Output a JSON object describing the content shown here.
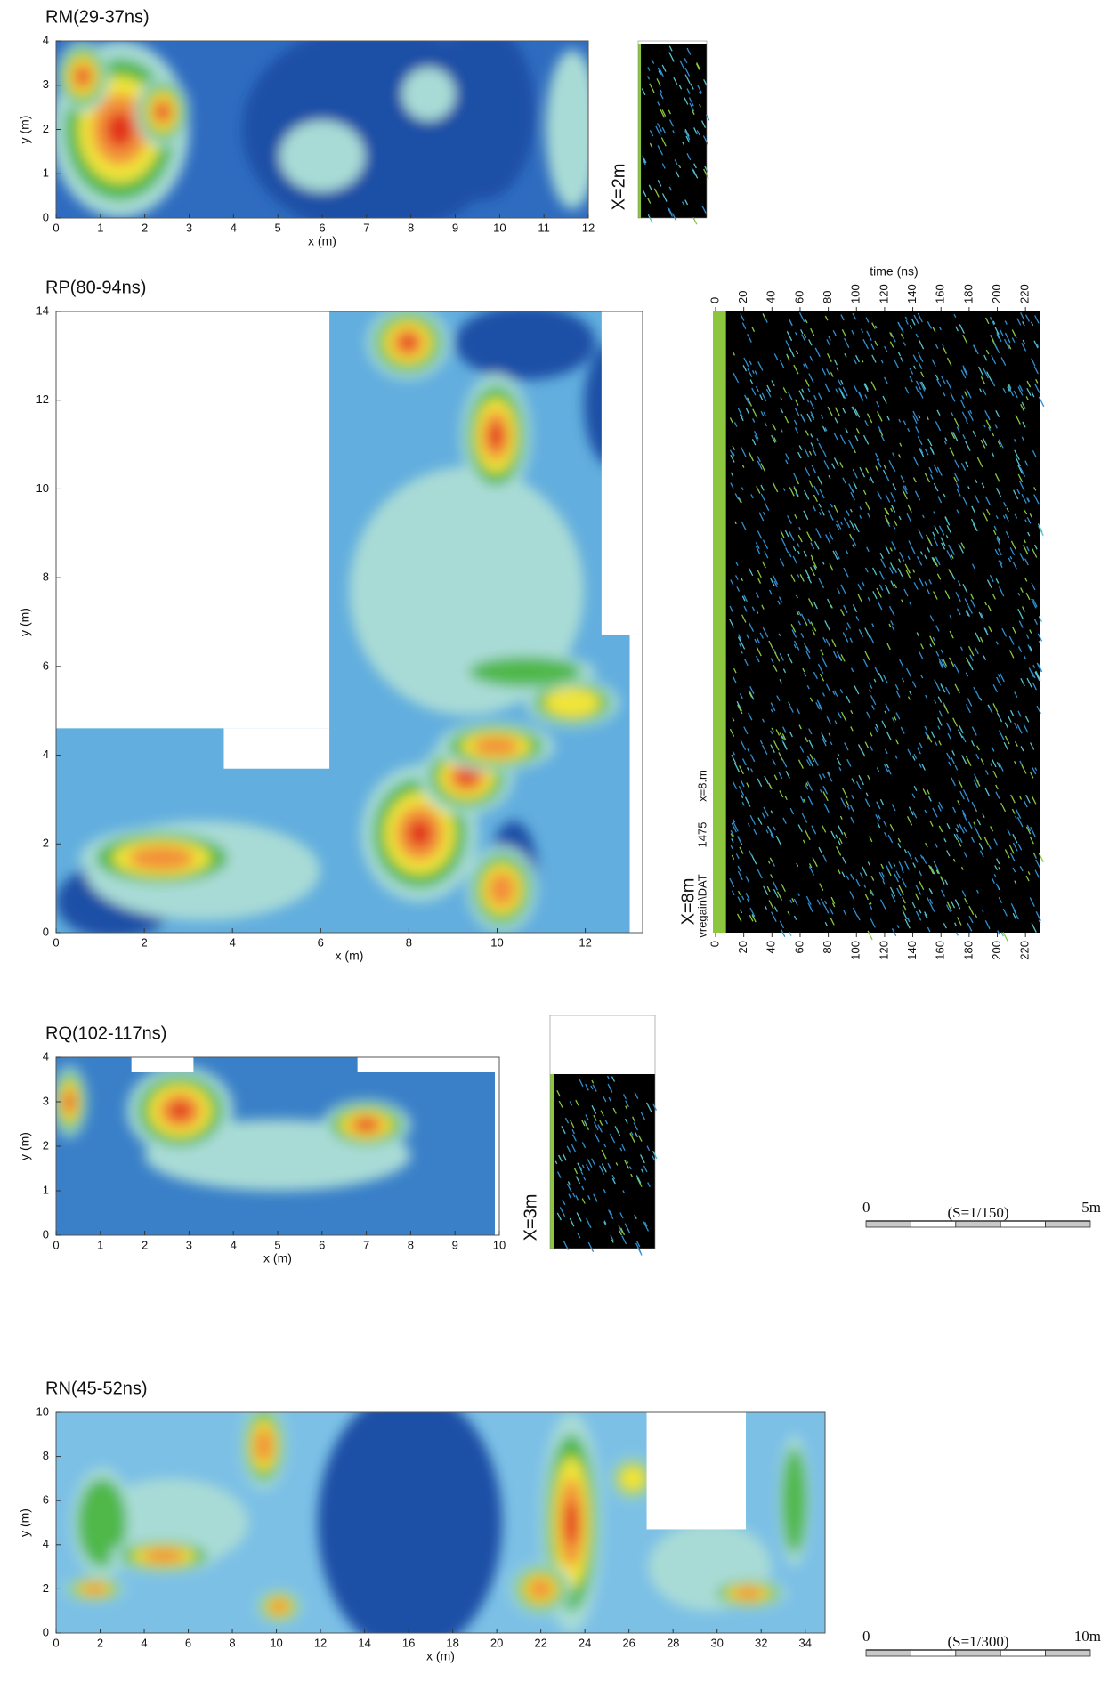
{
  "chart_data": [
    {
      "type": "heatmap",
      "title": "RM(29-37ns)",
      "xlabel": "x (m)",
      "ylabel": "y (m)",
      "xlim": [
        0,
        12
      ],
      "ylim": [
        0,
        4
      ],
      "xticks": [
        0,
        1,
        2,
        3,
        4,
        5,
        6,
        7,
        8,
        9,
        10,
        11,
        12
      ],
      "yticks": [
        0,
        1,
        2,
        3,
        4
      ]
    },
    {
      "type": "radargram",
      "label": "X=2m"
    },
    {
      "type": "heatmap",
      "title": "RP(80-94ns)",
      "xlabel": "x (m)",
      "ylabel": "y (m)",
      "xlim": [
        0,
        13.3
      ],
      "ylim": [
        0,
        14
      ],
      "xticks": [
        0,
        2,
        4,
        6,
        8,
        10,
        12
      ],
      "yticks": [
        0,
        2,
        4,
        6,
        8,
        10,
        12,
        14
      ]
    },
    {
      "type": "radargram",
      "xlabel": "time (ns)",
      "xlim": [
        0,
        230
      ],
      "xticks": [
        0,
        20,
        40,
        60,
        80,
        100,
        120,
        140,
        160,
        180,
        200,
        220
      ],
      "label": "X=8m",
      "annotations": [
        "vregain\\DAT",
        "1475",
        "x=8.m"
      ]
    },
    {
      "type": "heatmap",
      "title": "RQ(102-117ns)",
      "xlabel": "x (m)",
      "ylabel": "y (m)",
      "xlim": [
        0,
        10
      ],
      "ylim": [
        0,
        4
      ],
      "xticks": [
        0,
        1,
        2,
        3,
        4,
        5,
        6,
        7,
        8,
        9,
        10
      ],
      "yticks": [
        0,
        1,
        2,
        3,
        4
      ]
    },
    {
      "type": "radargram",
      "label": "X=3m"
    },
    {
      "type": "heatmap",
      "title": "RN(45-52ns)",
      "xlabel": "x (m)",
      "ylabel": "y (m)",
      "xlim": [
        0,
        34.9
      ],
      "ylim": [
        0,
        10
      ],
      "xticks": [
        0,
        2,
        4,
        6,
        8,
        10,
        12,
        14,
        16,
        18,
        20,
        22,
        24,
        26,
        28,
        30,
        32,
        34
      ],
      "yticks": [
        0,
        2,
        4,
        6,
        8,
        10
      ]
    }
  ],
  "scale_bars": [
    {
      "start": "0",
      "label": "(S=1/150)",
      "end": "5m"
    },
    {
      "start": "0",
      "label": "(S=1/300)",
      "end": "10m"
    }
  ]
}
